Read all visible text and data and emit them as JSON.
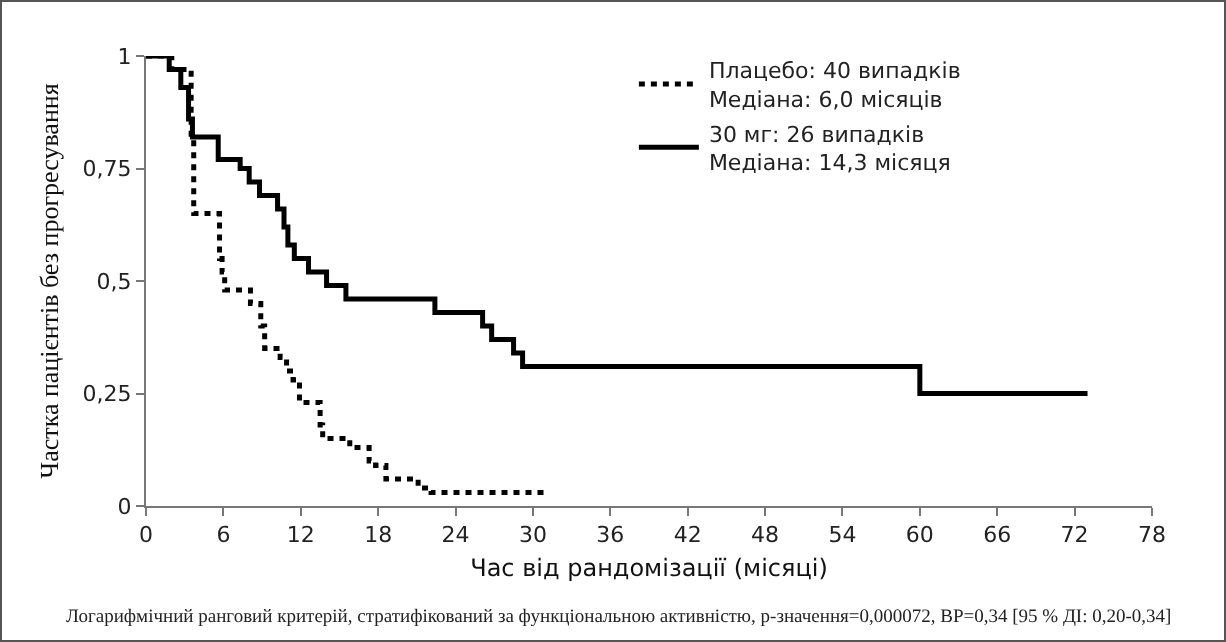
{
  "chart_data": {
    "type": "step",
    "xlabel": "Час від рандомізації (місяці)",
    "ylabel": "Частка пацієнтів без прогресування",
    "annotations": [
      "Логарифмічний ранговий критерій, стратифікований за функціональною активністю, p-значення=0,000072, ВР=0,34 [95 % ДІ: 0,20-0,34]"
    ],
    "xlim": [
      0,
      78
    ],
    "xticks": [
      0,
      6,
      12,
      18,
      24,
      30,
      36,
      42,
      48,
      54,
      60,
      66,
      72,
      78
    ],
    "ylim": [
      0,
      1
    ],
    "yticks": [
      0,
      {
        "value": 0.25,
        "label": "0,25"
      },
      {
        "value": 0.5,
        "label": "0,5"
      },
      {
        "value": 0.75,
        "label": "0,75"
      },
      1
    ],
    "grid": false,
    "legend": "top right",
    "marker": "none",
    "series": [
      {
        "name": "Плацебо: 40 випадків\nМедіана: 6,0 місяців",
        "color": "#000000",
        "line_style": "dotted",
        "x": [
          0,
          2,
          3.5,
          3.7,
          5.7,
          5.9,
          6.1,
          8.1,
          8.9,
          9.2,
          10.4,
          10.9,
          11.4,
          11.9,
          13.5,
          13.7,
          14.3,
          15.8,
          17.3,
          17.8,
          18.6,
          20.6,
          21.1,
          22.1,
          31
        ],
        "values": [
          1,
          0.97,
          0.82,
          0.65,
          0.55,
          0.52,
          0.48,
          0.45,
          0.4,
          0.35,
          0.33,
          0.3,
          0.28,
          0.23,
          0.18,
          0.15,
          0.15,
          0.13,
          0.1,
          0.09,
          0.06,
          0.06,
          0.04,
          0.03,
          0.03
        ]
      },
      {
        "name": "30 мг: 26 випадків\nМедіана: 14,3 місяця",
        "color": "#000000",
        "line_style": "solid",
        "x": [
          0,
          1.8,
          2.7,
          3.3,
          3.6,
          5.6,
          7.3,
          8,
          8.8,
          10.2,
          10.7,
          11,
          11.5,
          12.6,
          14,
          15.5,
          22.4,
          26.1,
          26.8,
          28.5,
          29.2,
          60,
          73
        ],
        "values": [
          1,
          0.97,
          0.93,
          0.86,
          0.82,
          0.77,
          0.75,
          0.72,
          0.69,
          0.66,
          0.62,
          0.58,
          0.55,
          0.52,
          0.49,
          0.46,
          0.43,
          0.4,
          0.37,
          0.34,
          0.31,
          0.25,
          0.25
        ]
      }
    ]
  }
}
